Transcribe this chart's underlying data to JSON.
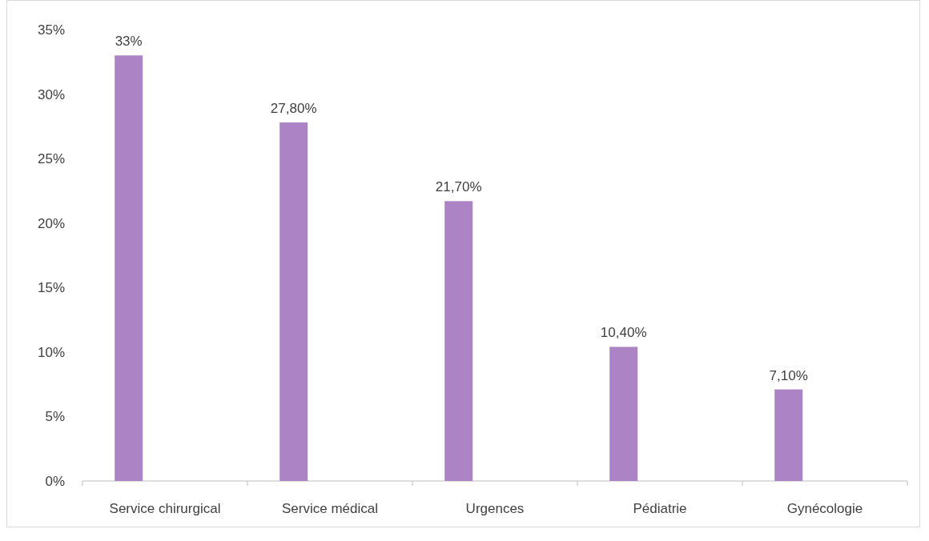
{
  "chart_data": {
    "type": "bar",
    "categories": [
      "Service chirurgical",
      "Service médical",
      "Urgences",
      "Pédiatrie",
      "Gynécologie"
    ],
    "values": [
      33,
      27.8,
      21.7,
      10.4,
      7.1
    ],
    "value_labels": [
      "33%",
      "27,80%",
      "21,70%",
      "10,40%",
      "7,10%"
    ],
    "color": "#ac84c6",
    "ylim": [
      0,
      35
    ],
    "yticks": [
      {
        "value": 0,
        "label": "0%"
      },
      {
        "value": 5,
        "label": "5%"
      },
      {
        "value": 10,
        "label": "10%"
      },
      {
        "value": 15,
        "label": "15%"
      },
      {
        "value": 20,
        "label": "20%"
      },
      {
        "value": 25,
        "label": "25%"
      },
      {
        "value": 30,
        "label": "30%"
      },
      {
        "value": 35,
        "label": "35%"
      }
    ],
    "grid": false
  }
}
